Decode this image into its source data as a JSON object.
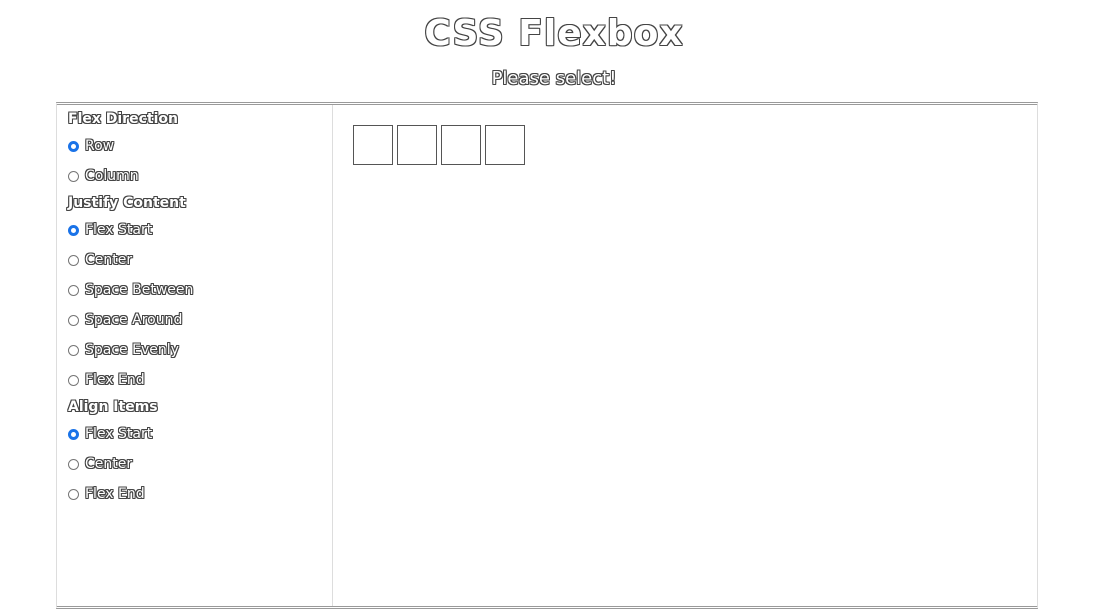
{
  "header": {
    "title": "CSS Flexbox",
    "subtitle": "Please select!"
  },
  "sidebar": {
    "groups": [
      {
        "title": "Flex Direction",
        "options": [
          {
            "label": "Row",
            "checked": true
          },
          {
            "label": "Column",
            "checked": false
          }
        ]
      },
      {
        "title": "Justify Content",
        "options": [
          {
            "label": "Flex Start",
            "checked": true
          },
          {
            "label": "Center",
            "checked": false
          },
          {
            "label": "Space Between",
            "checked": false
          },
          {
            "label": "Space Around",
            "checked": false
          },
          {
            "label": "Space Evenly",
            "checked": false
          },
          {
            "label": "Flex End",
            "checked": false
          }
        ]
      },
      {
        "title": "Align Items",
        "options": [
          {
            "label": "Flex Start",
            "checked": true
          },
          {
            "label": "Center",
            "checked": false
          },
          {
            "label": "Flex End",
            "checked": false
          }
        ]
      }
    ]
  },
  "stage": {
    "box_count": 4
  },
  "colors": {
    "radio_checked": "#1a73e8",
    "outline_text": "#444444"
  }
}
